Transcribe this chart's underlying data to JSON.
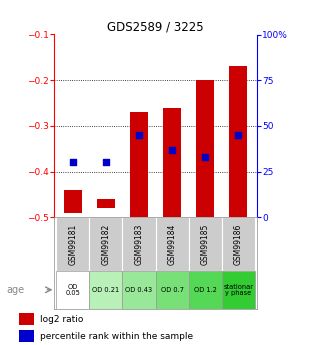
{
  "title": "GDS2589 / 3225",
  "samples": [
    "GSM99181",
    "GSM99182",
    "GSM99183",
    "GSM99184",
    "GSM99185",
    "GSM99186"
  ],
  "age_labels": [
    "OD\n0.05",
    "OD 0.21",
    "OD 0.43",
    "OD 0.7",
    "OD 1.2",
    "stationar\ny phase"
  ],
  "age_colors": [
    "#ffffff",
    "#b8f0b8",
    "#99e899",
    "#77e077",
    "#55d855",
    "#33cc33"
  ],
  "log2_ratio_bottom": [
    -0.49,
    -0.48,
    -0.5,
    -0.5,
    -0.5,
    -0.5
  ],
  "log2_ratio_top": [
    -0.44,
    -0.46,
    -0.27,
    -0.26,
    -0.2,
    -0.17
  ],
  "percentile_rank": [
    30,
    30,
    45,
    37,
    33,
    45
  ],
  "ylim_left": [
    -0.5,
    -0.1
  ],
  "ylim_right": [
    0,
    100
  ],
  "yticks_left": [
    -0.5,
    -0.4,
    -0.3,
    -0.2,
    -0.1
  ],
  "yticks_right": [
    0,
    25,
    50,
    75,
    100
  ],
  "bar_color": "#cc0000",
  "dot_color": "#0000cc",
  "bar_width": 0.55,
  "legend_ratio_label": "log2 ratio",
  "legend_pct_label": "percentile rank within the sample",
  "sample_bg_color": "#cccccc"
}
